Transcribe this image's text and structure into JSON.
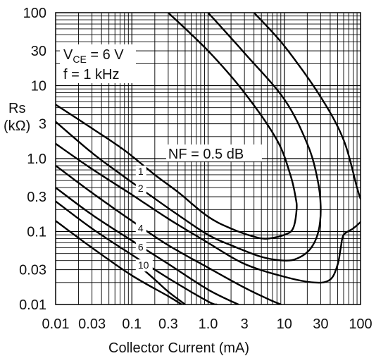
{
  "chart_data": {
    "type": "line",
    "x_scale": "log",
    "y_scale": "log",
    "xlim": [
      0.01,
      100
    ],
    "ylim": [
      0.01,
      100
    ],
    "grid": true,
    "xlabel": "Collector Current  (mA)",
    "ylabel_line1": "Rs",
    "ylabel_line2": "(kΩ)",
    "x_ticks": [
      {
        "value": 0.01,
        "label": "0.01"
      },
      {
        "value": 0.03,
        "label": "0.03"
      },
      {
        "value": 0.1,
        "label": "0.1"
      },
      {
        "value": 0.3,
        "label": "0.3"
      },
      {
        "value": 1,
        "label": "1.0"
      },
      {
        "value": 3,
        "label": "3"
      },
      {
        "value": 10,
        "label": "10"
      },
      {
        "value": 30,
        "label": "30"
      },
      {
        "value": 100,
        "label": "100"
      }
    ],
    "y_ticks": [
      {
        "value": 100,
        "label": "100"
      },
      {
        "value": 30,
        "label": "30"
      },
      {
        "value": 10,
        "label": "10"
      },
      {
        "value": 3,
        "label": "3"
      },
      {
        "value": 1,
        "label": "1.0"
      },
      {
        "value": 0.3,
        "label": "0.3"
      },
      {
        "value": 0.1,
        "label": "0.1"
      },
      {
        "value": 0.03,
        "label": "0.03"
      },
      {
        "value": 0.01,
        "label": "0.01"
      }
    ],
    "conditions": {
      "vce_prefix": "V",
      "vce_sub": "CE",
      "vce_value": " = 6 V",
      "freq": "f = 1 kHz"
    },
    "series": [
      {
        "name": "NF = 0.5 dB",
        "label": "NF = 0.5 dB",
        "label_at": [
          0.3,
          1.0
        ],
        "points": [
          [
            0.3,
            100
          ],
          [
            1,
            30
          ],
          [
            3,
            8
          ],
          [
            8,
            1.8
          ],
          [
            12,
            0.6
          ],
          [
            14,
            0.3
          ],
          [
            14.5,
            0.2
          ],
          [
            13,
            0.11
          ],
          [
            10,
            0.09
          ],
          [
            6,
            0.08
          ],
          [
            4,
            0.085
          ],
          [
            2,
            0.11
          ],
          [
            1,
            0.16
          ],
          [
            0.4,
            0.35
          ],
          [
            0.2,
            0.6
          ],
          [
            0.08,
            1.3
          ],
          [
            0.03,
            2.6
          ],
          [
            0.01,
            5.5
          ]
        ]
      },
      {
        "name": "1",
        "label": "1",
        "label_at": [
          0.12,
          0.6
        ],
        "points": [
          [
            1,
            100
          ],
          [
            3,
            28
          ],
          [
            10,
            6.5
          ],
          [
            20,
            1.6
          ],
          [
            27,
            0.55
          ],
          [
            30,
            0.22
          ],
          [
            28,
            0.1
          ],
          [
            22,
            0.058
          ],
          [
            15,
            0.043
          ],
          [
            10,
            0.04
          ],
          [
            5,
            0.045
          ],
          [
            2,
            0.065
          ],
          [
            1,
            0.09
          ],
          [
            0.4,
            0.17
          ],
          [
            0.15,
            0.35
          ],
          [
            0.07,
            0.62
          ],
          [
            0.03,
            1.2
          ],
          [
            0.01,
            3.2
          ]
        ]
      },
      {
        "name": "2",
        "label": "2",
        "label_at": [
          0.12,
          0.35
        ],
        "points": [
          [
            4,
            100
          ],
          [
            10,
            35
          ],
          [
            30,
            7
          ],
          [
            60,
            1.8
          ],
          [
            90,
            0.4
          ],
          [
            100,
            0.28
          ]
        ]
      },
      {
        "name": "4",
        "label": "4",
        "label_at": [
          0.12,
          0.1
        ],
        "points": [
          [
            0.01,
            1.6
          ],
          [
            0.03,
            0.72
          ],
          [
            0.1,
            0.32
          ],
          [
            0.3,
            0.15
          ],
          [
            1,
            0.07
          ],
          [
            3,
            0.036
          ],
          [
            10,
            0.024
          ],
          [
            25,
            0.02
          ],
          [
            40,
            0.022
          ],
          [
            50,
            0.035
          ],
          [
            55,
            0.06
          ],
          [
            60,
            0.09
          ],
          [
            80,
            0.11
          ],
          [
            100,
            0.135
          ]
        ]
      },
      {
        "name": "6",
        "label": "6",
        "label_at": [
          0.12,
          0.055
        ],
        "points": [
          [
            0.01,
            0.8
          ],
          [
            0.03,
            0.34
          ],
          [
            0.1,
            0.14
          ],
          [
            0.3,
            0.065
          ],
          [
            1,
            0.032
          ],
          [
            3,
            0.017
          ],
          [
            6,
            0.012
          ],
          [
            9,
            0.01
          ]
        ]
      },
      {
        "name": "10",
        "label": "10",
        "label_at": [
          0.12,
          0.031
        ],
        "points": [
          [
            0.01,
            0.26
          ],
          [
            0.03,
            0.11
          ],
          [
            0.1,
            0.048
          ],
          [
            0.3,
            0.023
          ],
          [
            1,
            0.011
          ],
          [
            1.3,
            0.01
          ]
        ]
      },
      {
        "name": "",
        "points": [
          [
            0.01,
            0.4
          ],
          [
            0.03,
            0.17
          ],
          [
            0.1,
            0.075
          ],
          [
            0.3,
            0.036
          ],
          [
            1,
            0.016
          ],
          [
            2.5,
            0.01
          ]
        ]
      },
      {
        "name": "",
        "points": [
          [
            0.01,
            0.14
          ],
          [
            0.03,
            0.06
          ],
          [
            0.1,
            0.025
          ],
          [
            0.3,
            0.013
          ],
          [
            0.45,
            0.01
          ]
        ]
      },
      {
        "name": "",
        "points": [
          [
            0.12,
            0.035
          ],
          [
            0.2,
            0.022
          ],
          [
            0.3,
            0.015
          ],
          [
            0.5,
            0.01
          ]
        ]
      }
    ]
  }
}
